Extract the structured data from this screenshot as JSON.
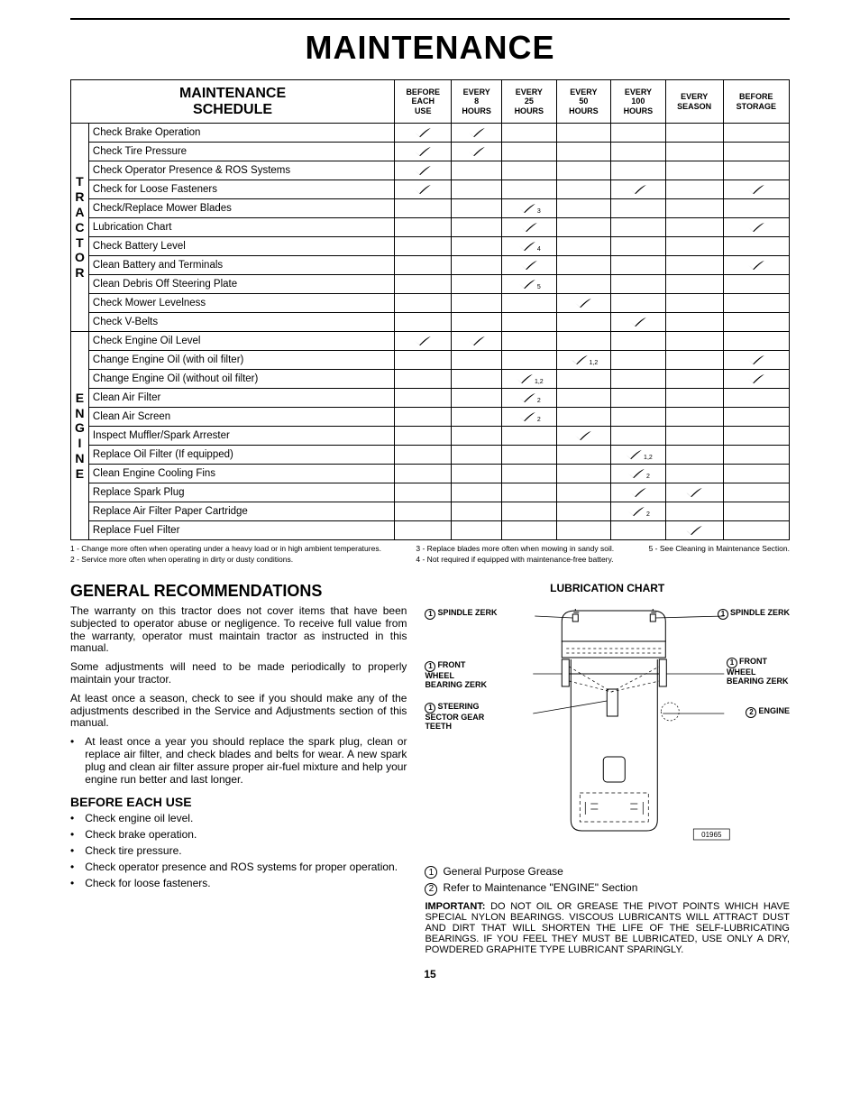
{
  "page_title": "MAINTENANCE",
  "schedule": {
    "title_l1": "MAINTENANCE",
    "title_l2": "SCHEDULE",
    "columns": [
      {
        "l1": "BEFORE",
        "l2": "EACH",
        "l3": "USE"
      },
      {
        "l1": "EVERY",
        "l2": "8",
        "l3": "HOURS"
      },
      {
        "l1": "EVERY",
        "l2": "25",
        "l3": "HOURS"
      },
      {
        "l1": "EVERY",
        "l2": "50",
        "l3": "HOURS"
      },
      {
        "l1": "EVERY",
        "l2": "100",
        "l3": "HOURS"
      },
      {
        "l1": "EVERY",
        "l2": "SEASON",
        "l3": ""
      },
      {
        "l1": "BEFORE",
        "l2": "STORAGE",
        "l3": ""
      }
    ],
    "sections": [
      {
        "label": "TRACTOR",
        "rows": [
          {
            "task": "Check Brake Operation",
            "marks": [
              true,
              true,
              false,
              false,
              false,
              false,
              false
            ],
            "subs": [
              "",
              "",
              "",
              "",
              "",
              "",
              ""
            ]
          },
          {
            "task": "Check Tire Pressure",
            "marks": [
              true,
              true,
              false,
              false,
              false,
              false,
              false
            ],
            "subs": [
              "",
              "",
              "",
              "",
              "",
              "",
              ""
            ]
          },
          {
            "task": "Check Operator Presence & ROS Systems",
            "marks": [
              true,
              false,
              false,
              false,
              false,
              false,
              false
            ],
            "subs": [
              "",
              "",
              "",
              "",
              "",
              "",
              ""
            ]
          },
          {
            "task": "Check for Loose Fasteners",
            "marks": [
              true,
              false,
              false,
              false,
              true,
              false,
              true
            ],
            "subs": [
              "",
              "",
              "",
              "",
              "",
              "",
              ""
            ]
          },
          {
            "task": "Check/Replace Mower Blades",
            "marks": [
              false,
              false,
              true,
              false,
              false,
              false,
              false
            ],
            "subs": [
              "",
              "",
              "3",
              "",
              "",
              "",
              ""
            ]
          },
          {
            "task": "Lubrication Chart",
            "marks": [
              false,
              false,
              true,
              false,
              false,
              false,
              true
            ],
            "subs": [
              "",
              "",
              "",
              "",
              "",
              "",
              ""
            ]
          },
          {
            "task": "Check Battery Level",
            "marks": [
              false,
              false,
              true,
              false,
              false,
              false,
              false
            ],
            "subs": [
              "",
              "",
              "4",
              "",
              "",
              "",
              ""
            ]
          },
          {
            "task": "Clean Battery and Terminals",
            "marks": [
              false,
              false,
              true,
              false,
              false,
              false,
              true
            ],
            "subs": [
              "",
              "",
              "",
              "",
              "",
              "",
              ""
            ]
          },
          {
            "task": "Clean Debris Off Steering Plate",
            "marks": [
              false,
              false,
              true,
              false,
              false,
              false,
              false
            ],
            "subs": [
              "",
              "",
              "5",
              "",
              "",
              "",
              ""
            ]
          },
          {
            "task": "Check Mower Levelness",
            "marks": [
              false,
              false,
              false,
              true,
              false,
              false,
              false
            ],
            "subs": [
              "",
              "",
              "",
              "",
              "",
              "",
              ""
            ]
          },
          {
            "task": "Check V-Belts",
            "marks": [
              false,
              false,
              false,
              false,
              true,
              false,
              false
            ],
            "subs": [
              "",
              "",
              "",
              "",
              "",
              "",
              ""
            ]
          }
        ]
      },
      {
        "label": "ENGINE",
        "rows": [
          {
            "task": "Check Engine Oil Level",
            "marks": [
              true,
              true,
              false,
              false,
              false,
              false,
              false
            ],
            "subs": [
              "",
              "",
              "",
              "",
              "",
              "",
              ""
            ]
          },
          {
            "task": "Change Engine Oil (with oil filter)",
            "marks": [
              false,
              false,
              false,
              true,
              false,
              false,
              true
            ],
            "subs": [
              "",
              "",
              "",
              "1,2",
              "",
              "",
              ""
            ]
          },
          {
            "task": "Change Engine Oil (without oil filter)",
            "marks": [
              false,
              false,
              true,
              false,
              false,
              false,
              true
            ],
            "subs": [
              "",
              "",
              "1,2",
              "",
              "",
              "",
              ""
            ]
          },
          {
            "task": "Clean Air Filter",
            "marks": [
              false,
              false,
              true,
              false,
              false,
              false,
              false
            ],
            "subs": [
              "",
              "",
              "2",
              "",
              "",
              "",
              ""
            ]
          },
          {
            "task": "Clean Air Screen",
            "marks": [
              false,
              false,
              true,
              false,
              false,
              false,
              false
            ],
            "subs": [
              "",
              "",
              "2",
              "",
              "",
              "",
              ""
            ]
          },
          {
            "task": "Inspect Muffler/Spark Arrester",
            "marks": [
              false,
              false,
              false,
              true,
              false,
              false,
              false
            ],
            "subs": [
              "",
              "",
              "",
              "",
              "",
              "",
              ""
            ]
          },
          {
            "task": "Replace Oil Filter (If equipped)",
            "marks": [
              false,
              false,
              false,
              false,
              true,
              false,
              false
            ],
            "subs": [
              "",
              "",
              "",
              "",
              "1,2",
              "",
              ""
            ]
          },
          {
            "task": "Clean Engine Cooling Fins",
            "marks": [
              false,
              false,
              false,
              false,
              true,
              false,
              false
            ],
            "subs": [
              "",
              "",
              "",
              "",
              "2",
              "",
              ""
            ]
          },
          {
            "task": "Replace Spark Plug",
            "marks": [
              false,
              false,
              false,
              false,
              true,
              true,
              false
            ],
            "subs": [
              "",
              "",
              "",
              "",
              "",
              "",
              ""
            ]
          },
          {
            "task": "Replace Air Filter Paper Cartridge",
            "marks": [
              false,
              false,
              false,
              false,
              true,
              false,
              false
            ],
            "subs": [
              "",
              "",
              "",
              "",
              "2",
              "",
              ""
            ]
          },
          {
            "task": "Replace Fuel Filter",
            "marks": [
              false,
              false,
              false,
              false,
              false,
              true,
              false
            ],
            "subs": [
              "",
              "",
              "",
              "",
              "",
              "",
              ""
            ]
          }
        ]
      }
    ]
  },
  "footnotes": {
    "left": [
      "1 - Change more often when operating under a heavy load or in high ambient temperatures.",
      "2 - Service more often when operating in dirty or dusty conditions."
    ],
    "center": [
      "3 - Replace blades more often when mowing in sandy soil.",
      "4 - Not required if equipped with maintenance-free battery."
    ],
    "right": [
      "5 - See Cleaning in Maintenance Section."
    ]
  },
  "gr_title": "GENERAL RECOMMENDATIONS",
  "gr_p1": "The warranty on this tractor does not cover items that have been subjected to operator abuse or negligence.  To receive full value from the warranty, operator must maintain tractor as instructed in this manual.",
  "gr_p2": "Some adjustments will need to be made periodically to properly maintain your tractor.",
  "gr_p3": "At least once a season, check to see if you should make any of the adjustments described in the Service and Adjustments section of this manual.",
  "gr_li1": "At least once a year you should replace the spark plug, clean or replace air filter, and check blades and belts for wear.  A new spark plug and clean air filter assure proper air-fuel mixture and help your engine run better and last longer.",
  "beu_title": "BEFORE EACH USE",
  "beu_items": [
    "Check engine oil level.",
    "Check brake operation.",
    "Check tire pressure.",
    "Check operator presence and ROS systems for proper operation.",
    "Check for loose fasteners."
  ],
  "lube": {
    "title": "LUBRICATION CHART",
    "callouts": {
      "sz_l": "SPINDLE ZERK",
      "sz_r": "SPINDLE ZERK",
      "fw_l": "FRONT WHEEL BEARING ZERK",
      "fw_r": "FRONT WHEEL BEARING ZERK",
      "ss": "STEERING SECTOR GEAR TEETH",
      "eng": "ENGINE"
    },
    "fig_num": "01965",
    "legend1": "General Purpose Grease",
    "legend2": "Refer to Maintenance \"ENGINE\" Section",
    "important_label": "IMPORTANT:",
    "important_text": "  DO NOT OIL OR GREASE THE PIVOT POINTS WHICH HAVE SPECIAL NYLON BEARINGS.   VISCOUS LUBRICANTS WILL ATTRACT DUST AND DIRT THAT WILL SHORTEN THE LIFE OF THE SELF-LUBRICATING BEARINGS.  IF YOU FEEL THEY MUST BE LUBRICATED, USE ONLY A DRY, POWDERED GRAPHITE TYPE LUBRICANT SPARINGLY."
  },
  "page_number": "15",
  "colors": {
    "text": "#000000",
    "bg": "#ffffff",
    "rule": "#000000",
    "check": "#000000"
  }
}
